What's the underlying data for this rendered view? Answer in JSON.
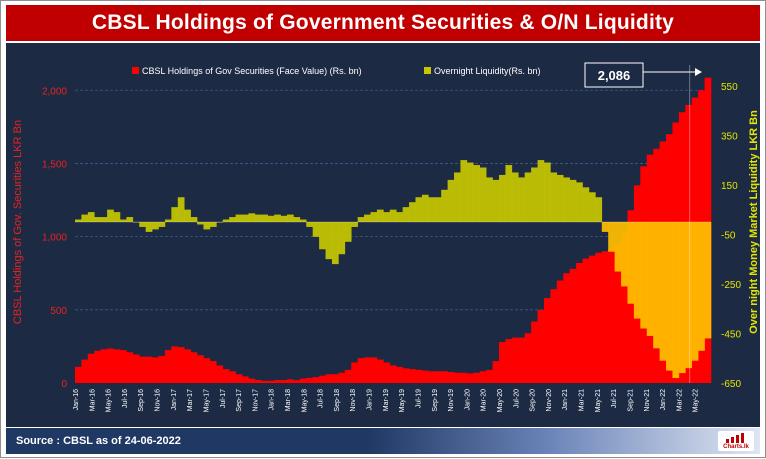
{
  "title": "CBSL Holdings of Government Securities & O/N Liquidity",
  "source": "Source : CBSL as of 24-06-2022",
  "logo_text": "Charts.lk",
  "chart_data": {
    "type": "bar",
    "title": "CBSL Holdings of Government Securities & O/N Liquidity",
    "ylabel_left": "CBSL Holdings of Gov. Securities LKR Bn",
    "ylabel_right": "Over night Money Market Liquidity LKR Bn",
    "left_axis": {
      "min": 0,
      "max": 2200,
      "ticks": [
        0,
        500,
        1000,
        1500,
        2000
      ],
      "tick_labels": [
        "0",
        "500",
        "1,000",
        "1,500",
        "2,000"
      ]
    },
    "right_axis": {
      "min": -650,
      "max": 650,
      "ticks": [
        -650,
        -450,
        -250,
        -50,
        150,
        350,
        550
      ],
      "tick_labels": [
        "-650",
        "-450",
        "-250",
        "-50",
        "150",
        "350",
        "550"
      ]
    },
    "x_tick_labels": [
      "Jan-16",
      "Mar-16",
      "May-16",
      "Jul-16",
      "Sep-16",
      "Nov-16",
      "Jan-17",
      "Mar-17",
      "May-17",
      "Jul-17",
      "Sep-17",
      "Nov-17",
      "Jan-18",
      "Mar-18",
      "May-18",
      "Jul-18",
      "Sep-18",
      "Nov-18",
      "Jan-19",
      "Mar-19",
      "May-19",
      "Jul-19",
      "Sep-19",
      "Nov-19",
      "Jan-20",
      "Mar-20",
      "May-20",
      "Jul-20",
      "Sep-20",
      "Nov-20",
      "Jan-21",
      "Mar-21",
      "May-21",
      "Jul-21",
      "Sep-21",
      "Nov-21",
      "Jan-22",
      "Mar-22",
      "May-22"
    ],
    "grid": "horizontal dashed",
    "legend_position": "top",
    "annotation": {
      "text": "2,086",
      "value": 2086
    },
    "colors": {
      "holdings": "#ff0000",
      "liquidity": "#c8c800",
      "liquidity_highlight": "#ffc000",
      "background": "#1d2a44",
      "title_bar": "#c00000"
    },
    "series": [
      {
        "name": "CBSL Holdings of  Gov Securities (Face Value)  (Rs. bn)",
        "axis": "left",
        "values": [
          110,
          160,
          200,
          220,
          230,
          235,
          230,
          225,
          210,
          195,
          180,
          180,
          175,
          185,
          225,
          250,
          245,
          230,
          210,
          190,
          170,
          150,
          120,
          95,
          80,
          60,
          45,
          30,
          20,
          15,
          15,
          20,
          20,
          25,
          20,
          30,
          35,
          40,
          50,
          60,
          60,
          70,
          90,
          140,
          170,
          175,
          175,
          160,
          140,
          120,
          110,
          100,
          95,
          90,
          85,
          80,
          80,
          80,
          75,
          70,
          70,
          65,
          70,
          80,
          90,
          150,
          280,
          300,
          310,
          310,
          340,
          420,
          500,
          580,
          640,
          700,
          750,
          780,
          820,
          850,
          870,
          890,
          900,
          920,
          950,
          1020,
          1180,
          1350,
          1480,
          1560,
          1600,
          1650,
          1700,
          1780,
          1850,
          1900,
          1950,
          2000,
          2086
        ]
      },
      {
        "name": "Overnight Liquidity(Rs. bn)",
        "axis": "right",
        "values": [
          10,
          30,
          40,
          20,
          20,
          50,
          40,
          10,
          20,
          0,
          -20,
          -40,
          -30,
          -20,
          10,
          60,
          100,
          50,
          20,
          -10,
          -30,
          -20,
          0,
          10,
          20,
          30,
          30,
          35,
          30,
          30,
          25,
          30,
          25,
          30,
          20,
          10,
          -20,
          -60,
          -110,
          -150,
          -170,
          -130,
          -80,
          -20,
          20,
          30,
          40,
          50,
          40,
          50,
          40,
          60,
          80,
          100,
          110,
          100,
          100,
          130,
          170,
          200,
          250,
          240,
          230,
          220,
          180,
          170,
          190,
          230,
          200,
          180,
          200,
          220,
          250,
          240,
          200,
          190,
          180,
          170,
          160,
          140,
          120,
          100,
          -40,
          -120,
          -200,
          -260,
          -330,
          -390,
          -430,
          -460,
          -510,
          -560,
          -600,
          -630,
          -610,
          -590,
          -560,
          -520,
          -470
        ]
      }
    ]
  }
}
